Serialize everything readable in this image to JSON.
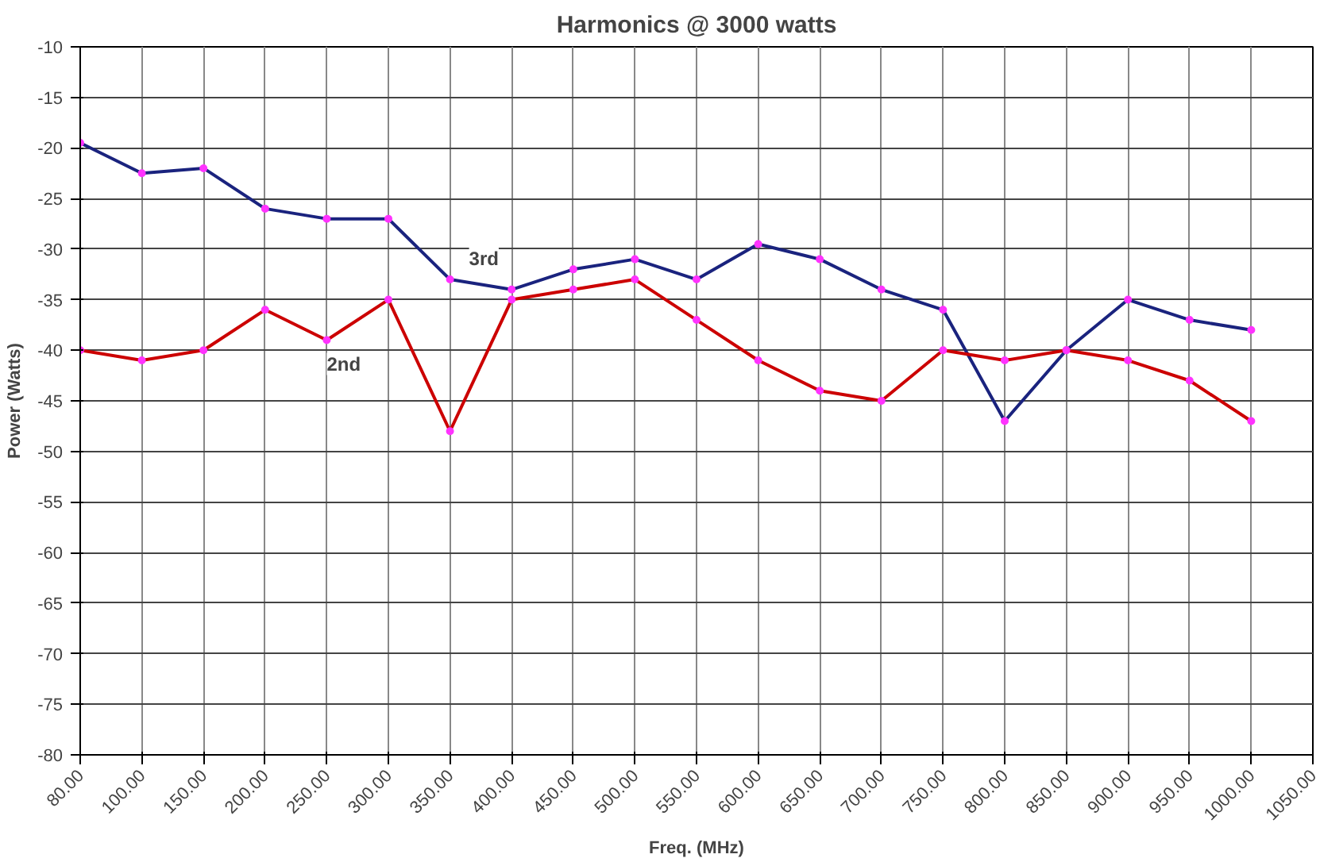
{
  "chart_data": {
    "type": "line",
    "title": "Harmonics @ 3000 watts",
    "xlabel": "Freq. (MHz)",
    "ylabel": "Power (Watts)",
    "categories": [
      "80.00",
      "100.00",
      "150.00",
      "200.00",
      "250.00",
      "300.00",
      "350.00",
      "400.00",
      "450.00",
      "500.00",
      "550.00",
      "600.00",
      "650.00",
      "700.00",
      "750.00",
      "800.00",
      "850.00",
      "900.00",
      "950.00",
      "1000.00",
      "1050.00"
    ],
    "series": [
      {
        "name": "3rd",
        "color": "#1a237e",
        "values": [
          -19.5,
          -22.5,
          -22,
          -26,
          -27,
          -27,
          -33,
          -34,
          -32,
          -31,
          -33,
          -29.5,
          -31,
          -34,
          -36,
          -47,
          -40,
          -35,
          -37,
          -38,
          null
        ]
      },
      {
        "name": "2nd",
        "color": "#cc0000",
        "values": [
          -40,
          -41,
          -40,
          -36,
          -39,
          -35,
          -48,
          -35,
          -34,
          -33,
          -37,
          -41,
          -44,
          -45,
          -40,
          -41,
          -40,
          -41,
          -43,
          -47,
          null
        ]
      }
    ],
    "ylim": [
      -80,
      -10
    ],
    "yticks": [
      -80,
      -75,
      -70,
      -65,
      -60,
      -55,
      -50,
      -45,
      -40,
      -35,
      -30,
      -25,
      -20,
      -15,
      -10
    ],
    "grid": true,
    "marker": "circle",
    "line_style": "solid"
  }
}
